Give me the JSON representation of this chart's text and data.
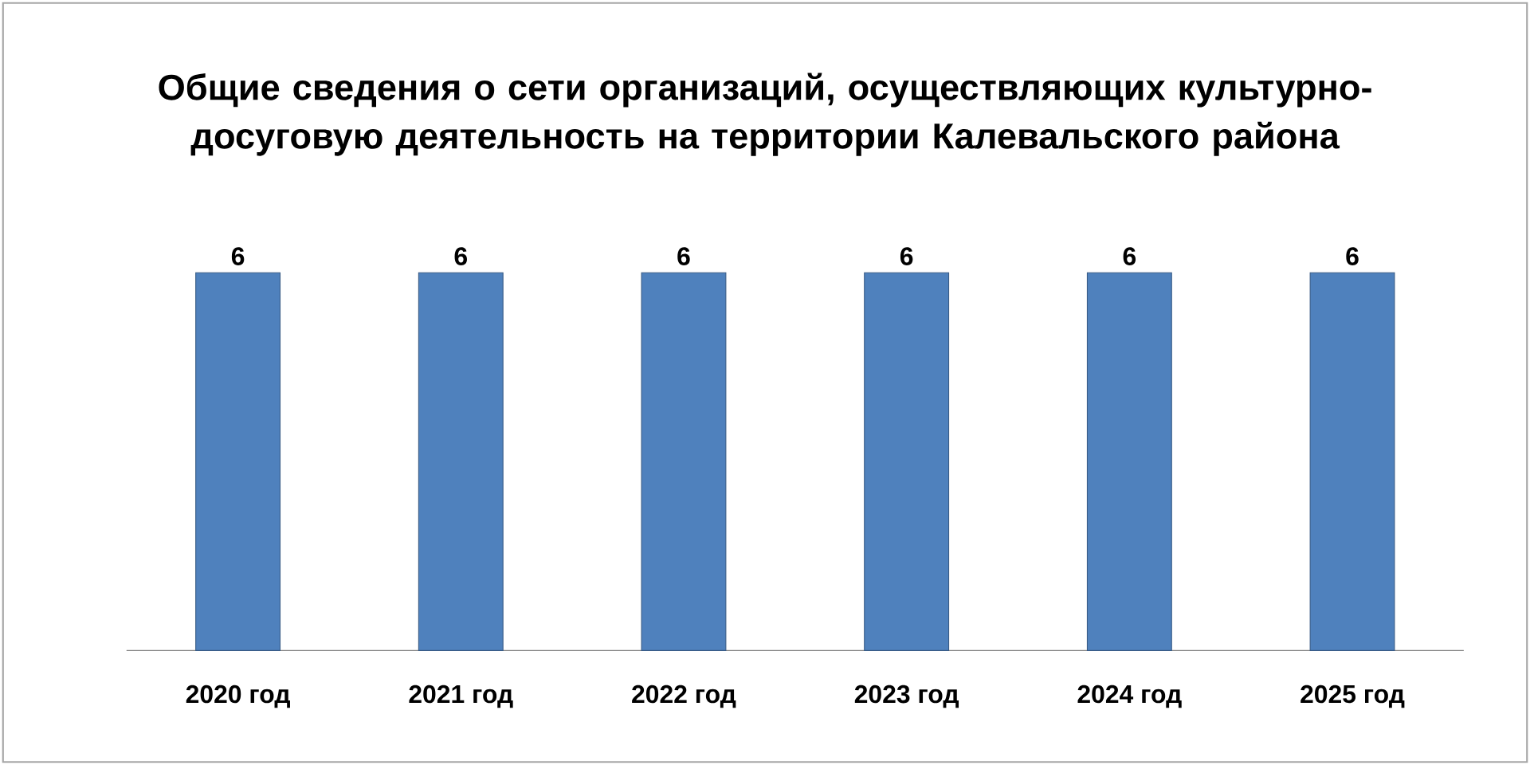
{
  "chart_data": {
    "type": "bar",
    "title": "Общие сведения о сети организаций, осуществляющих культурно-досуговую деятельность на территории Калевальского района",
    "categories": [
      "2020 год",
      "2021 год",
      "2022 год",
      "2023 год",
      "2024 год",
      "2025 год"
    ],
    "values": [
      6,
      6,
      6,
      6,
      6,
      6
    ],
    "color": "#4f81bd",
    "data_labels": true
  }
}
